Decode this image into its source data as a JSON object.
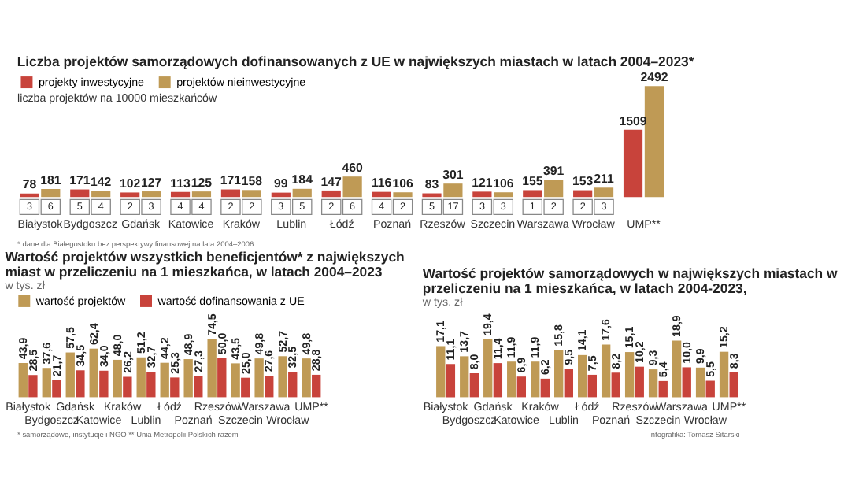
{
  "chart_data": [
    {
      "type": "bar",
      "title": "Liczba projektów samorządowych dofinansowanych z UE w największych miastach w latach 2004–2023*",
      "categories": [
        "Białystok",
        "Bydgoszcz",
        "Gdańsk",
        "Katowice",
        "Kraków",
        "Lublin",
        "Łódź",
        "Poznań",
        "Rzeszów",
        "Szczecin",
        "Warszawa",
        "Wrocław",
        "UMP**"
      ],
      "series": [
        {
          "name": "projekty inwestycyjne",
          "color": "#c8433b",
          "values": [
            78,
            171,
            102,
            113,
            171,
            99,
            147,
            116,
            83,
            121,
            155,
            153,
            1509
          ]
        },
        {
          "name": "projektów nieinwestycyjne",
          "color": "#bf9a55",
          "values": [
            181,
            142,
            127,
            125,
            158,
            184,
            460,
            106,
            301,
            106,
            391,
            211,
            2492
          ]
        }
      ],
      "data_labels": true,
      "legend": "top left",
      "annotations": [
        "liczba projektów na 10000 mieszkańców",
        "3",
        "6",
        "5",
        "4",
        "2",
        "3",
        "4",
        "4",
        "2",
        "2",
        "3",
        "5",
        "2",
        "6",
        "4",
        "2",
        "5",
        "17",
        "3",
        "3",
        "1",
        "2",
        "2",
        "3",
        "* dane dla Białegostoku bez perspektywy finansowej na lata 2004–2006"
      ]
    },
    {
      "type": "bar",
      "title": "Wartość projektów wszystkich beneficjentów* z największych miast w przeliczeniu na 1 mieszkańca, w latach 2004–2023",
      "subtitle": "w tys. zł",
      "categories": [
        "Białystok",
        "Bydgoszcz",
        "Gdańsk",
        "Katowice",
        "Kraków",
        "Lublin",
        "Łódź",
        "Poznań",
        "Rzeszów",
        "Szczecin",
        "Warszawa",
        "Wrocław",
        "UMP**"
      ],
      "series": [
        {
          "name": "wartość projektów",
          "color": "#bf9a55",
          "values": [
            43.9,
            37.6,
            57.5,
            62.4,
            48.0,
            51.2,
            44.2,
            48.9,
            74.5,
            43.5,
            49.8,
            52.7,
            49.8
          ],
          "value_labels": [
            "43,9",
            "37,6",
            "57,5",
            "62,4",
            "48,0",
            "51,2",
            "44,2",
            "48,9",
            "74,5",
            "43,5",
            "49,8",
            "52,7",
            "49,8"
          ]
        },
        {
          "name": "wartość dofinansowania z UE",
          "color": "#c8433b",
          "values": [
            28.5,
            21.7,
            34.5,
            34.0,
            26.2,
            32.7,
            25.3,
            27.3,
            50.0,
            25.0,
            27.6,
            32.5,
            28.8
          ],
          "value_labels": [
            "28,5",
            "21,7",
            "34,5",
            "34,0",
            "26,2",
            "32,7",
            "25,3",
            "27,3",
            "50,0",
            "25,0",
            "27,6",
            "32,5",
            "28,8"
          ]
        }
      ],
      "legend": "top",
      "annotations": [
        "* samorządowe, instytucje i NGO ** Unia Metropolii Polskich razem"
      ]
    },
    {
      "type": "bar",
      "title": "Wartość projektów samorządowych w największych miastach w przeliczeniu na 1 mieszkańca, w latach 2004-2023,",
      "subtitle": "w tys. zł",
      "categories": [
        "Białystok",
        "Bydgoszcz",
        "Gdańsk",
        "Katowice",
        "Kraków",
        "Lublin",
        "Łódź",
        "Poznań",
        "Rzeszów",
        "Szczecin",
        "Warszawa",
        "Wrocław",
        "UMP**"
      ],
      "series": [
        {
          "color": "#bf9a55",
          "values": [
            17.1,
            13.7,
            19.4,
            11.9,
            11.9,
            15.8,
            14.1,
            17.6,
            15.1,
            9.3,
            18.9,
            9.9,
            15.2
          ],
          "value_labels": [
            "17,1",
            "13,7",
            "19,4",
            "11,9",
            "11,9",
            "15,8",
            "14,1",
            "17,6",
            "15,1",
            "9,3",
            "18,9",
            "9,9",
            "15,2"
          ]
        },
        {
          "color": "#c8433b",
          "values": [
            11.1,
            8.0,
            11.4,
            6.9,
            6.2,
            9.5,
            7.5,
            8.2,
            10.2,
            5.4,
            10.0,
            5.5,
            8.3
          ],
          "value_labels": [
            "11,1",
            "8,0",
            "11,4",
            "6,9",
            "6,2",
            "9,5",
            "7,5",
            "8,2",
            "10,2",
            "5,4",
            "10,0",
            "5,5",
            "8,3"
          ]
        }
      ],
      "annotations": [
        "Infografika: Tomasz Sitarski"
      ]
    }
  ]
}
